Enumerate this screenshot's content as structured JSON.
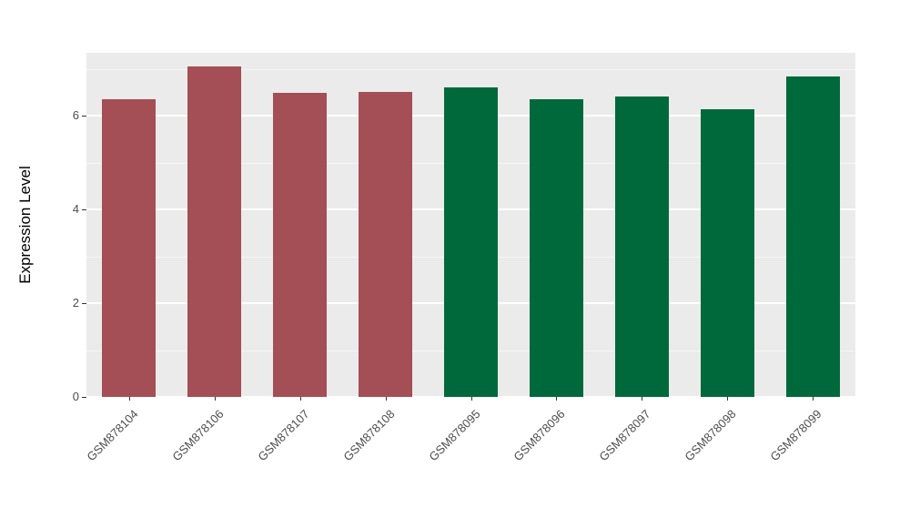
{
  "chart_data": {
    "type": "bar",
    "title": "",
    "xlabel": "",
    "ylabel": "Expression Level",
    "ylim": [
      0,
      7.35
    ],
    "yticks": [
      0,
      2,
      4,
      6
    ],
    "yticks_minor": [
      1,
      3,
      5,
      7
    ],
    "grid": true,
    "legend_position": "none",
    "panel_bg": "#EBEBEB",
    "grid_color": "#FFFFFF",
    "axis_text_color": "#4D4D4D",
    "categories": [
      "GSM878104",
      "GSM878106",
      "GSM878107",
      "GSM878108",
      "GSM878095",
      "GSM878096",
      "GSM878097",
      "GSM878098",
      "GSM878099"
    ],
    "values": [
      6.35,
      7.05,
      6.5,
      6.52,
      6.62,
      6.35,
      6.42,
      6.15,
      6.85
    ],
    "bar_colors": [
      "#A44E55",
      "#A44E55",
      "#A44E55",
      "#A44E55",
      "#00693C",
      "#00693C",
      "#00693C",
      "#00693C",
      "#00693C"
    ],
    "group_colors": {
      "left_group": "#A44E55",
      "right_group": "#00693C"
    }
  }
}
